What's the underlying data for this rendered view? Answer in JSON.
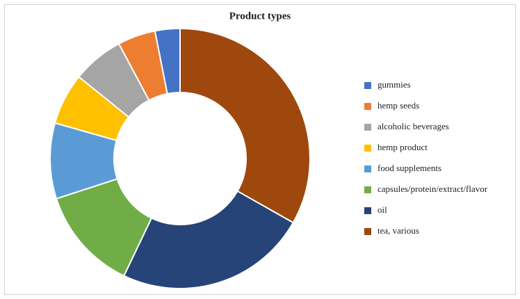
{
  "chart_data": {
    "type": "donut",
    "title": "Product types",
    "categories": [
      "gummies",
      "hemp seeds",
      "alcoholic beverages",
      "hemp product",
      "food supplements",
      "capsules/protein/extract/flavor",
      "oil",
      "tea, various"
    ],
    "values": [
      3.1,
      4.7,
      6.4,
      6.4,
      9.4,
      12.9,
      23.9,
      33.2
    ],
    "colors": [
      "#4472c4",
      "#ed7d31",
      "#a5a5a5",
      "#ffc000",
      "#5b9bd5",
      "#70ad47",
      "#264478",
      "#9e480e"
    ],
    "legend": "right"
  }
}
